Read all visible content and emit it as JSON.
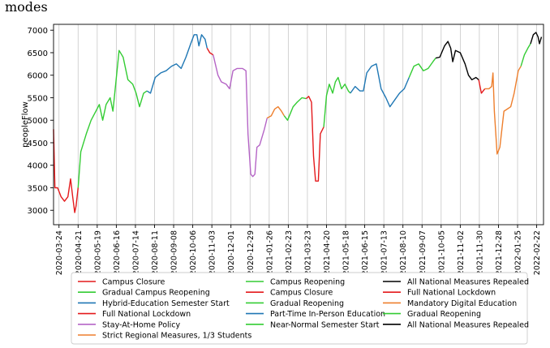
{
  "page": {
    "heading_fragment": "modes"
  },
  "chart_data": {
    "type": "line",
    "title": "",
    "xlabel": "",
    "ylabel": "peopleFlow",
    "ylim": [
      2680,
      7130
    ],
    "yticks": [
      3000,
      3500,
      4000,
      4500,
      5000,
      5500,
      6000,
      6500,
      7000
    ],
    "x_ticks": [
      "2020-03-24",
      "2020-04-21",
      "2020-05-19",
      "2020-06-16",
      "2020-07-14",
      "2020-08-11",
      "2020-09-08",
      "2020-10-06",
      "2020-11-03",
      "2020-12-01",
      "2020-12-29",
      "2021-01-26",
      "2021-02-23",
      "2021-03-23",
      "2021-04-20",
      "2021-05-18",
      "2021-06-15",
      "2021-07-13",
      "2021-08-10",
      "2021-09-07",
      "2021-10-05",
      "2021-11-02",
      "2021-11-30",
      "2021-12-28",
      "2022-01-25",
      "2022-02-22"
    ],
    "x_range": [
      "2020-03-16",
      "2022-03-04"
    ],
    "grid": "vertical",
    "legend_position": "bottom",
    "series": [
      {
        "name": "Campus Closure",
        "color": "#e41a1c",
        "points": [
          [
            "2020-03-16",
            4800
          ],
          [
            "2020-03-18",
            3500
          ],
          [
            "2020-03-22",
            3500
          ],
          [
            "2020-03-27",
            3300
          ],
          [
            "2020-04-01",
            3200
          ],
          [
            "2020-04-06",
            3300
          ],
          [
            "2020-04-10",
            3700
          ],
          [
            "2020-04-13",
            3300
          ],
          [
            "2020-04-16",
            2950
          ],
          [
            "2020-04-18",
            3100
          ],
          [
            "2020-04-21",
            3500
          ]
        ]
      },
      {
        "name": "Gradual Campus Reopening",
        "color": "#33cc33",
        "points": [
          [
            "2020-04-21",
            3500
          ],
          [
            "2020-04-25",
            4300
          ],
          [
            "2020-05-03",
            4700
          ],
          [
            "2020-05-10",
            5000
          ],
          [
            "2020-05-17",
            5200
          ],
          [
            "2020-05-22",
            5350
          ],
          [
            "2020-05-27",
            5000
          ],
          [
            "2020-06-01",
            5350
          ],
          [
            "2020-06-07",
            5500
          ],
          [
            "2020-06-11",
            5200
          ],
          [
            "2020-06-15",
            5800
          ],
          [
            "2020-06-20",
            6550
          ],
          [
            "2020-06-26",
            6400
          ],
          [
            "2020-07-03",
            5900
          ],
          [
            "2020-07-10",
            5800
          ],
          [
            "2020-07-15",
            5600
          ],
          [
            "2020-07-20",
            5300
          ],
          [
            "2020-07-26",
            5600
          ],
          [
            "2020-07-31",
            5650
          ]
        ]
      },
      {
        "name": "Hybrid-Education Semester Start",
        "color": "#1f77b4",
        "points": [
          [
            "2020-07-31",
            5650
          ],
          [
            "2020-08-05",
            5600
          ],
          [
            "2020-08-12",
            5950
          ],
          [
            "2020-08-20",
            6050
          ],
          [
            "2020-08-28",
            6100
          ],
          [
            "2020-09-05",
            6200
          ],
          [
            "2020-09-12",
            6250
          ],
          [
            "2020-09-19",
            6150
          ],
          [
            "2020-09-26",
            6400
          ],
          [
            "2020-10-03",
            6700
          ],
          [
            "2020-10-08",
            6900
          ],
          [
            "2020-10-12",
            6900
          ],
          [
            "2020-10-15",
            6650
          ],
          [
            "2020-10-19",
            6900
          ],
          [
            "2020-10-24",
            6800
          ],
          [
            "2020-10-27",
            6600
          ]
        ]
      },
      {
        "name": "Full National Lockdown",
        "color": "#e41a1c",
        "points": [
          [
            "2020-10-27",
            6600
          ],
          [
            "2020-10-31",
            6500
          ],
          [
            "2020-11-05",
            6450
          ]
        ]
      },
      {
        "name": "Stay-At-Home Policy",
        "color": "#b565c6",
        "points": [
          [
            "2020-11-05",
            6450
          ],
          [
            "2020-11-12",
            6000
          ],
          [
            "2020-11-17",
            5850
          ],
          [
            "2020-11-24",
            5800
          ],
          [
            "2020-11-29",
            5700
          ],
          [
            "2020-12-04",
            6100
          ],
          [
            "2020-12-10",
            6150
          ],
          [
            "2020-12-18",
            6150
          ],
          [
            "2020-12-23",
            6100
          ],
          [
            "2020-12-26",
            4700
          ],
          [
            "2020-12-30",
            3800
          ],
          [
            "2021-01-02",
            3750
          ],
          [
            "2021-01-05",
            3800
          ],
          [
            "2021-01-08",
            4400
          ],
          [
            "2021-01-12",
            4450
          ],
          [
            "2021-01-19",
            4800
          ],
          [
            "2021-01-23",
            5050
          ]
        ]
      },
      {
        "name": "Strict Regional Measures, 1/3 Students",
        "color": "#ee7f2d",
        "points": [
          [
            "2021-01-23",
            5050
          ],
          [
            "2021-01-29",
            5100
          ],
          [
            "2021-02-03",
            5250
          ],
          [
            "2021-02-08",
            5300
          ],
          [
            "2021-02-13",
            5200
          ],
          [
            "2021-02-17",
            5100
          ]
        ]
      },
      {
        "name": "Campus Reopening",
        "color": "#33cc33",
        "points": [
          [
            "2021-02-17",
            5100
          ],
          [
            "2021-02-22",
            5000
          ],
          [
            "2021-03-02",
            5300
          ],
          [
            "2021-03-08",
            5400
          ],
          [
            "2021-03-15",
            5500
          ],
          [
            "2021-03-21",
            5480
          ]
        ]
      },
      {
        "name": "Campus Closure",
        "color": "#e41a1c",
        "points": [
          [
            "2021-03-21",
            5480
          ],
          [
            "2021-03-25",
            5530
          ],
          [
            "2021-03-29",
            5400
          ],
          [
            "2021-04-01",
            4200
          ],
          [
            "2021-04-04",
            3650
          ],
          [
            "2021-04-08",
            3650
          ],
          [
            "2021-04-11",
            4700
          ],
          [
            "2021-04-16",
            4850
          ]
        ]
      },
      {
        "name": "Gradual Reopening",
        "color": "#33cc33",
        "points": [
          [
            "2021-04-16",
            4850
          ],
          [
            "2021-04-20",
            5550
          ],
          [
            "2021-04-24",
            5800
          ],
          [
            "2021-04-29",
            5600
          ],
          [
            "2021-05-03",
            5850
          ],
          [
            "2021-05-07",
            5950
          ],
          [
            "2021-05-12",
            5700
          ],
          [
            "2021-05-17",
            5800
          ],
          [
            "2021-05-22",
            5650
          ],
          [
            "2021-05-25",
            5600
          ]
        ]
      },
      {
        "name": "Part-Time In-Person Education",
        "color": "#1f77b4",
        "points": [
          [
            "2021-05-25",
            5600
          ],
          [
            "2021-06-01",
            5750
          ],
          [
            "2021-06-08",
            5650
          ],
          [
            "2021-06-13",
            5650
          ],
          [
            "2021-06-18",
            6050
          ],
          [
            "2021-06-25",
            6200
          ],
          [
            "2021-07-02",
            6250
          ],
          [
            "2021-07-09",
            5700
          ],
          [
            "2021-07-16",
            5500
          ],
          [
            "2021-07-22",
            5300
          ],
          [
            "2021-07-29",
            5450
          ],
          [
            "2021-08-05",
            5600
          ],
          [
            "2021-08-12",
            5700
          ],
          [
            "2021-08-19",
            5950
          ]
        ]
      },
      {
        "name": "Near-Normal Semester Start",
        "color": "#33cc33",
        "points": [
          [
            "2021-08-19",
            5950
          ],
          [
            "2021-08-26",
            6200
          ],
          [
            "2021-09-02",
            6250
          ],
          [
            "2021-09-09",
            6100
          ],
          [
            "2021-09-16",
            6150
          ],
          [
            "2021-09-23",
            6300
          ],
          [
            "2021-09-27",
            6380
          ]
        ]
      },
      {
        "name": "All National Measures Repealed",
        "color": "#000000",
        "points": [
          [
            "2021-09-27",
            6380
          ],
          [
            "2021-10-03",
            6400
          ],
          [
            "2021-10-10",
            6650
          ],
          [
            "2021-10-15",
            6750
          ],
          [
            "2021-10-19",
            6600
          ],
          [
            "2021-10-22",
            6300
          ],
          [
            "2021-10-26",
            6550
          ],
          [
            "2021-11-02",
            6500
          ],
          [
            "2021-11-09",
            6250
          ],
          [
            "2021-11-14",
            6000
          ],
          [
            "2021-11-19",
            5900
          ],
          [
            "2021-11-25",
            5950
          ],
          [
            "2021-11-29",
            5900
          ]
        ]
      },
      {
        "name": "Full National Lockdown",
        "color": "#e41a1c",
        "points": [
          [
            "2021-11-29",
            5900
          ],
          [
            "2021-12-03",
            5600
          ],
          [
            "2021-12-08",
            5700
          ]
        ]
      },
      {
        "name": "Mandatory Digital Education",
        "color": "#ee7f2d",
        "points": [
          [
            "2021-12-08",
            5700
          ],
          [
            "2021-12-14",
            5700
          ],
          [
            "2021-12-18",
            5750
          ],
          [
            "2021-12-20",
            6050
          ],
          [
            "2021-12-22",
            5200
          ],
          [
            "2021-12-26",
            4250
          ],
          [
            "2021-12-30",
            4400
          ],
          [
            "2022-01-05",
            5200
          ],
          [
            "2022-01-10",
            5250
          ],
          [
            "2022-01-15",
            5300
          ],
          [
            "2022-01-20",
            5600
          ],
          [
            "2022-01-26",
            6100
          ],
          [
            "2022-01-30",
            6200
          ]
        ]
      },
      {
        "name": "Gradual Reopening",
        "color": "#33cc33",
        "points": [
          [
            "2022-01-30",
            6200
          ],
          [
            "2022-02-04",
            6450
          ],
          [
            "2022-02-09",
            6600
          ],
          [
            "2022-02-13",
            6700
          ]
        ]
      },
      {
        "name": "All National Measures Repealed",
        "color": "#000000",
        "points": [
          [
            "2022-02-13",
            6700
          ],
          [
            "2022-02-17",
            6900
          ],
          [
            "2022-02-21",
            6950
          ],
          [
            "2022-02-24",
            6850
          ],
          [
            "2022-02-26",
            6700
          ],
          [
            "2022-03-01",
            6850
          ]
        ]
      }
    ]
  }
}
